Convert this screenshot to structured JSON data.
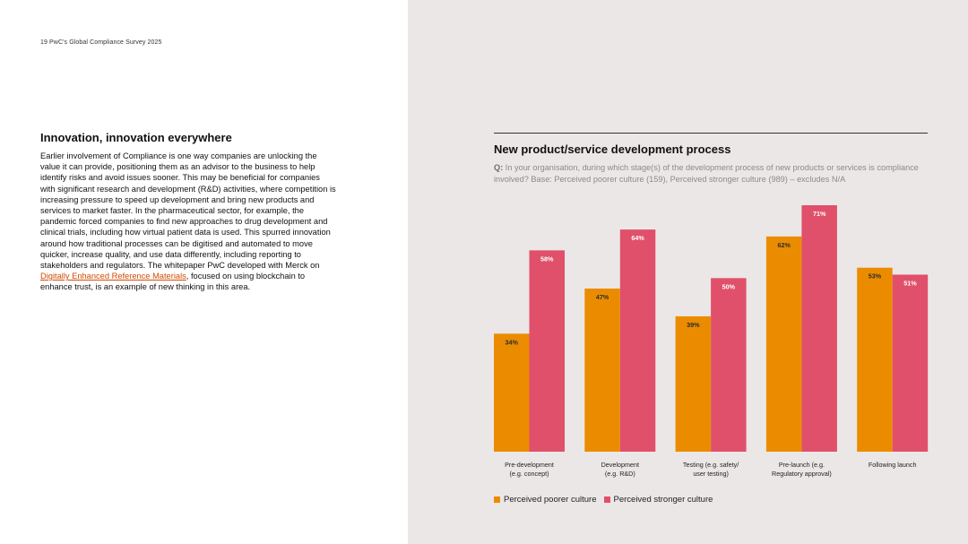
{
  "page": {
    "header": "19  PwC's Global Compliance Survey 2025"
  },
  "article": {
    "title": "Innovation, innovation everywhere",
    "body_before_link": "Earlier involvement of Compliance is one way companies are unlocking the value it can provide, positioning them as an advisor to the business to help identify risks and avoid issues sooner. This may be beneficial for companies with significant research and development (R&D) activities, where competition is increasing pressure to speed up development and bring new products and services to market faster. In the pharmaceutical sector, for example, the pandemic forced companies to find new approaches to drug development and clinical trials, including how virtual patient data is used. This spurred innovation around how traditional processes can be digitised and automated to move quicker, increase quality, and use data differently, including reporting to stakeholders and regulators. The whitepaper PwC developed with Merck on ",
    "link_text": "Digitally Enhanced Reference Materials",
    "body_after_link": ", focused on using blockchain to enhance trust, is an example of new thinking in this area."
  },
  "chart_data": {
    "type": "bar",
    "title": "New product/service development process",
    "question_prefix": "Q:",
    "question": " In your organisation, during which stage(s) of the development process of new products or services is compliance involved? Base: Perceived poorer culture (159), Perceived stronger culture (989) – excludes N/A",
    "categories": [
      [
        "Pre-development",
        "(e.g. concept)"
      ],
      [
        "Development",
        "(e.g. R&D)"
      ],
      [
        "Testing (e.g. safety/",
        "user testing)"
      ],
      [
        "Pre-launch (e.g.",
        "Regulatory approval)"
      ],
      [
        "Following launch"
      ]
    ],
    "series": [
      {
        "name": "Perceived poorer culture",
        "values": [
          34,
          47,
          39,
          62,
          53
        ],
        "color": "#eb8c00",
        "label_color": "#2d2d2d"
      },
      {
        "name": "Perceived stronger culture",
        "values": [
          58,
          64,
          50,
          71,
          51
        ],
        "color": "#e0506b",
        "label_color": "#ffffff"
      }
    ],
    "value_suffix": "%",
    "ylim": [
      0,
      71
    ],
    "grid": false,
    "legend_position": "bottom-left"
  }
}
